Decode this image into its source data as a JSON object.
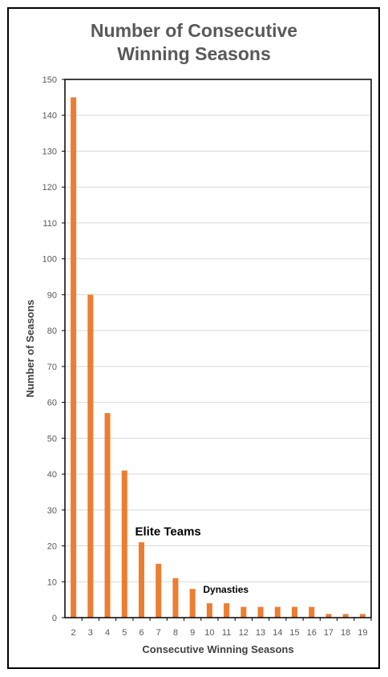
{
  "chart_data": {
    "type": "bar",
    "title": "Number of Consecutive\nWinning Seasons",
    "xlabel": "Consecutive Winning Seasons",
    "ylabel": "Number of Seasons",
    "categories": [
      "2",
      "3",
      "4",
      "5",
      "6",
      "7",
      "8",
      "9",
      "10",
      "11",
      "12",
      "13",
      "14",
      "15",
      "16",
      "17",
      "18",
      "19"
    ],
    "values": [
      145,
      90,
      57,
      41,
      21,
      15,
      11,
      8,
      4,
      4,
      3,
      3,
      3,
      3,
      3,
      1,
      1,
      1
    ],
    "ylim": [
      0,
      150
    ],
    "yticks": [
      0,
      10,
      20,
      30,
      40,
      50,
      60,
      70,
      80,
      90,
      100,
      110,
      120,
      130,
      140,
      150
    ],
    "grid": true,
    "legend": "none",
    "bar_color": "#ED7D31",
    "annotations": [
      {
        "text": "Elite Teams",
        "x": "6",
        "y": 22,
        "emphasis": "large"
      },
      {
        "text": "Dynasties",
        "x": "10",
        "y": 6,
        "emphasis": "small"
      }
    ]
  }
}
